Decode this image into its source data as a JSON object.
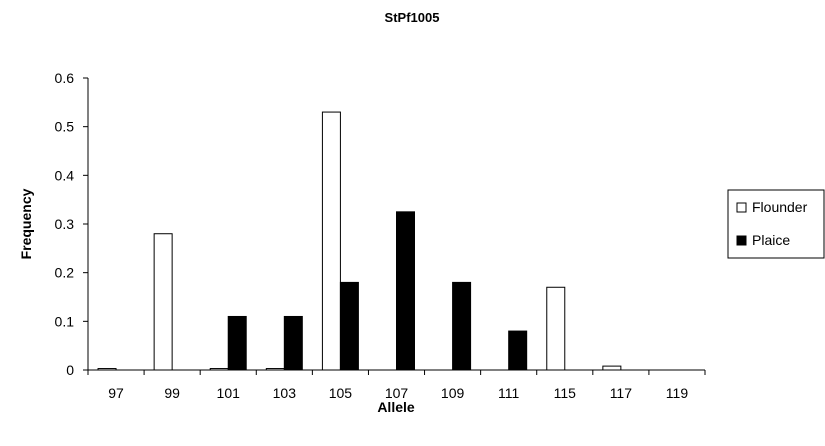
{
  "chart_data": {
    "type": "bar",
    "title": "StPf1005",
    "xlabel": "Allele",
    "ylabel": "Frequency",
    "categories": [
      "97",
      "99",
      "101",
      "103",
      "105",
      "107",
      "109",
      "111",
      "115",
      "117",
      "119"
    ],
    "series": [
      {
        "name": "Flounder",
        "color": "#ffffff",
        "values": [
          0.003,
          0.28,
          0.003,
          0.003,
          0.53,
          0,
          0,
          0,
          0.17,
          0.008,
          0
        ]
      },
      {
        "name": "Plaice",
        "color": "#000000",
        "values": [
          0,
          0,
          0.11,
          0.11,
          0.18,
          0.325,
          0.18,
          0.08,
          0,
          0,
          0
        ]
      }
    ],
    "ylim": [
      0,
      0.6
    ],
    "yticks": [
      "0",
      "0.1",
      "0.2",
      "0.3",
      "0.4",
      "0.5",
      "0.6"
    ],
    "grid": false,
    "legend_position": "right"
  }
}
